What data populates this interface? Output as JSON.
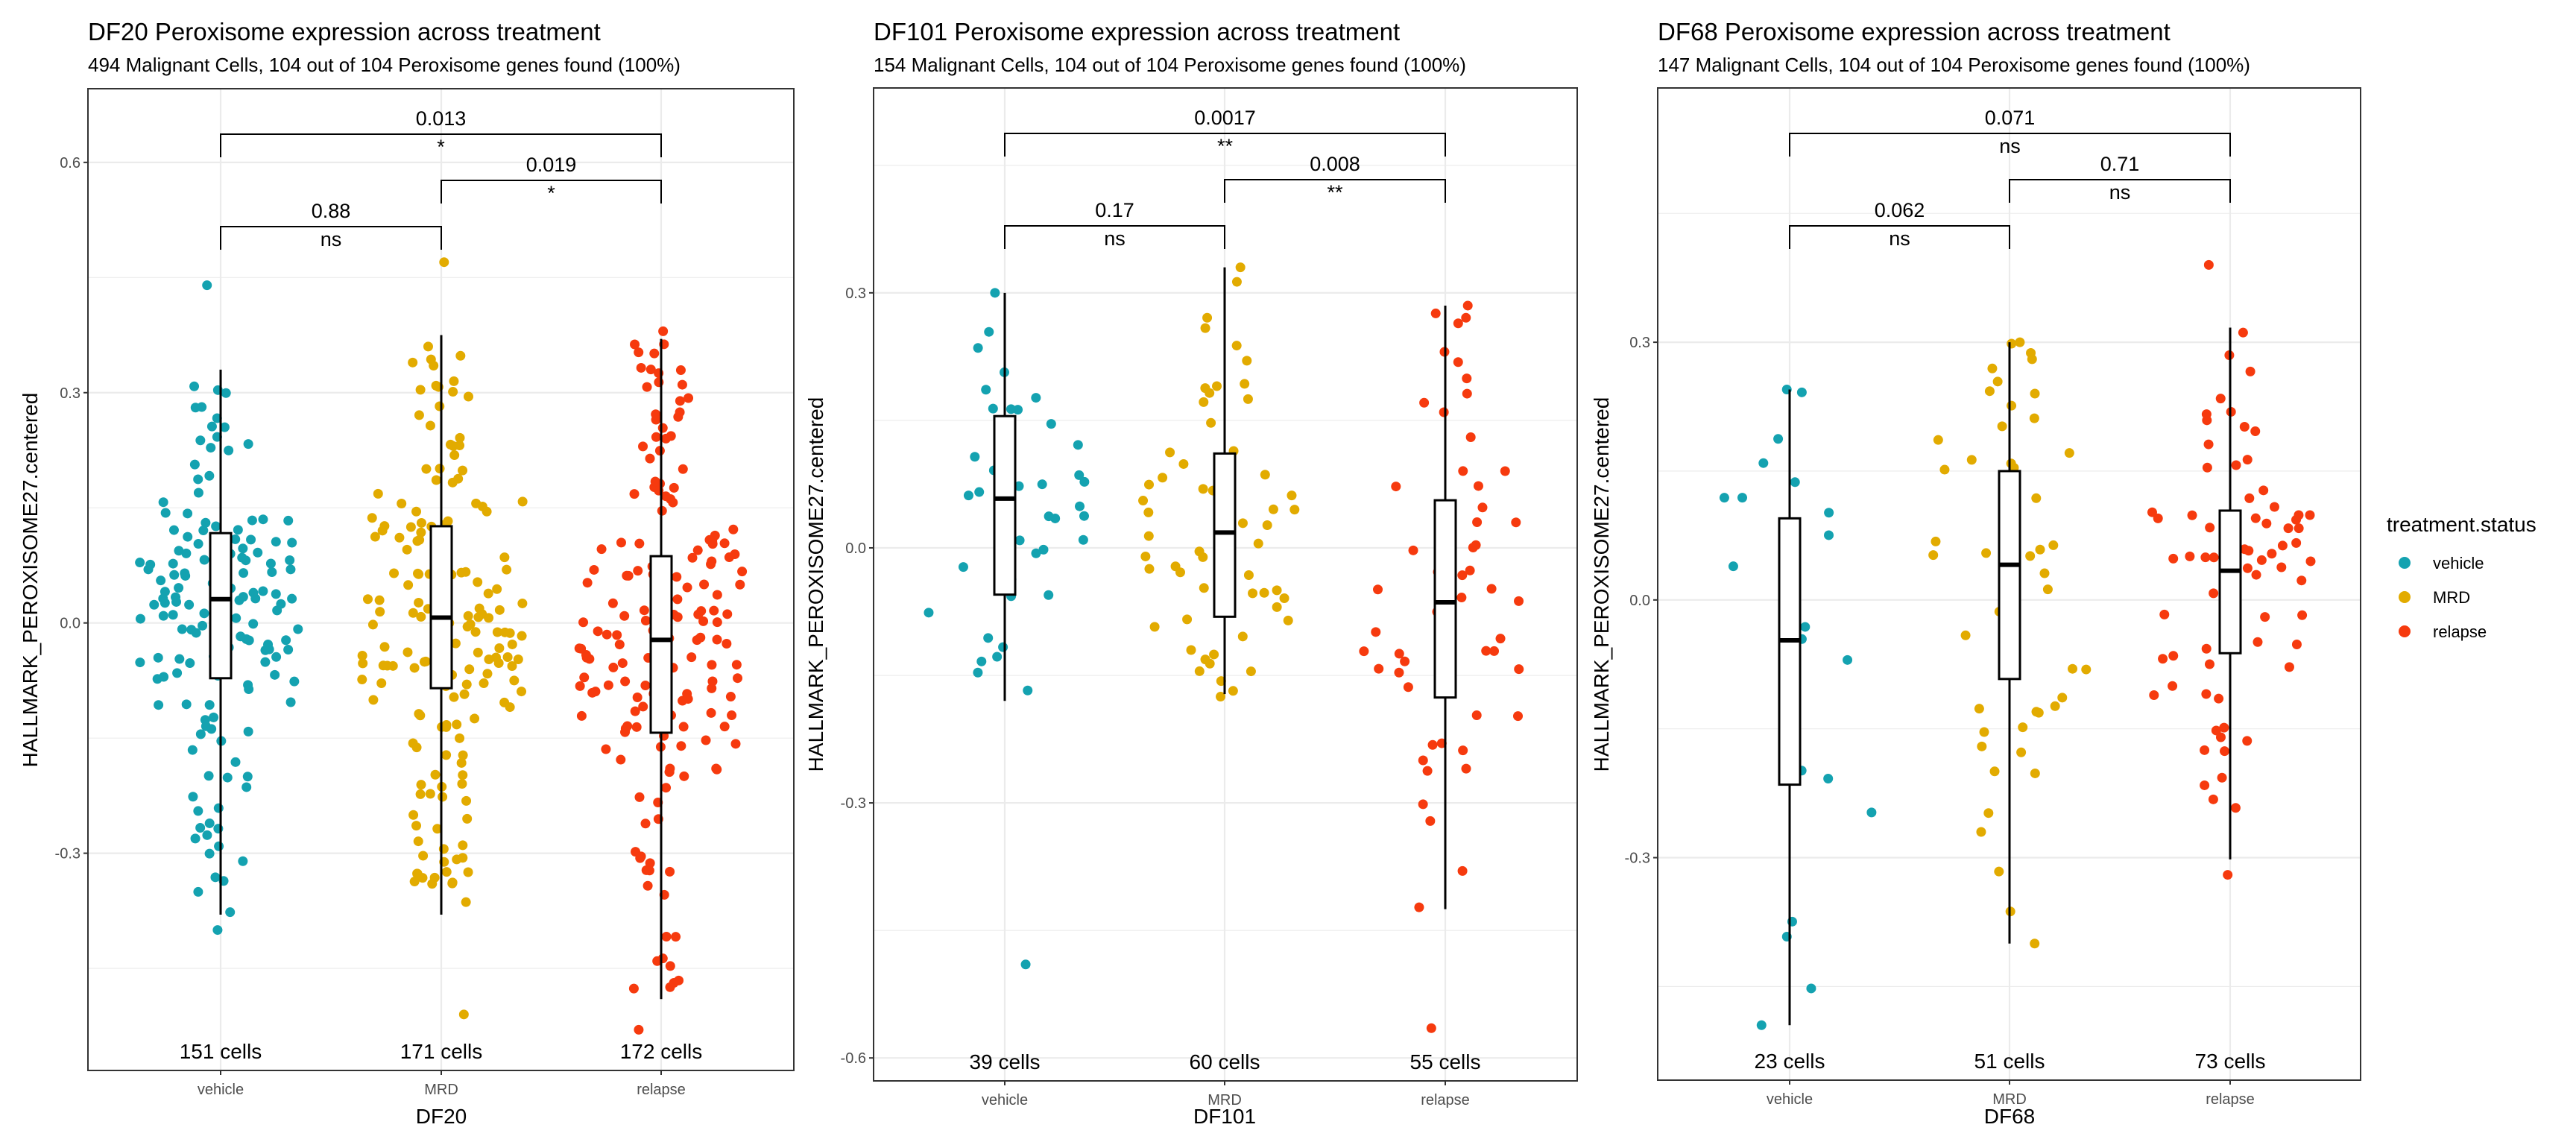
{
  "chart_data": [
    {
      "type": "scatter",
      "subtype": "jitter-with-boxplot",
      "title": "DF20 Peroxisome expression across treatment",
      "subtitle": "494 Malignant Cells, 104 out of 104 Peroxisome genes found (100%)",
      "xlabel": "DF20",
      "ylabel": "HALLMARK_PEROXISOME27.centered",
      "categories": [
        "vehicle",
        "MRD",
        "relapse"
      ],
      "ylim": [
        -0.583,
        0.696
      ],
      "yticks": [
        -0.3,
        0.0,
        0.3,
        0.6
      ],
      "ytick_labels": [
        "-0.3",
        "0.0",
        "0.3",
        "0.6"
      ],
      "grid": true,
      "groups": [
        {
          "name": "vehicle",
          "n": 151,
          "count_label": "151 cells",
          "box": {
            "whisker_low": -0.38,
            "q1": -0.072,
            "median": 0.031,
            "q3": 0.117,
            "whisker_high": 0.33
          },
          "range": [
            -0.4,
            0.44
          ]
        },
        {
          "name": "MRD",
          "n": 171,
          "count_label": "171 cells",
          "box": {
            "whisker_low": -0.38,
            "q1": -0.085,
            "median": 0.007,
            "q3": 0.126,
            "whisker_high": 0.375
          },
          "range": [
            -0.51,
            0.47
          ]
        },
        {
          "name": "relapse",
          "n": 172,
          "count_label": "172 cells",
          "box": {
            "whisker_low": -0.49,
            "q1": -0.143,
            "median": -0.022,
            "q3": 0.087,
            "whisker_high": 0.37
          },
          "range": [
            -0.53,
            0.38
          ]
        }
      ],
      "comparisons": [
        {
          "from": "vehicle",
          "to": "MRD",
          "p": "0.88",
          "signif": "ns",
          "level": 1
        },
        {
          "from": "MRD",
          "to": "relapse",
          "p": "0.019",
          "signif": "*",
          "level": 2
        },
        {
          "from": "vehicle",
          "to": "relapse",
          "p": "0.013",
          "signif": "*",
          "level": 3
        }
      ]
    },
    {
      "type": "scatter",
      "subtype": "jitter-with-boxplot",
      "title": "DF101 Peroxisome expression across treatment",
      "subtitle": "154 Malignant Cells, 104 out of 104 Peroxisome genes found (100%)",
      "xlabel": "DF101",
      "ylabel": "HALLMARK_PEROXISOME27.centered",
      "categories": [
        "vehicle",
        "MRD",
        "relapse"
      ],
      "ylim": [
        -0.627,
        0.541
      ],
      "yticks": [
        -0.6,
        -0.3,
        0.0,
        0.3
      ],
      "ytick_labels": [
        "-0.6",
        "-0.3",
        "0.0",
        "0.3"
      ],
      "grid": true,
      "groups": [
        {
          "name": "vehicle",
          "n": 39,
          "count_label": "39 cells",
          "box": {
            "whisker_low": -0.18,
            "q1": -0.055,
            "median": 0.058,
            "q3": 0.155,
            "whisker_high": 0.3
          },
          "range": [
            -0.49,
            0.3
          ]
        },
        {
          "name": "MRD",
          "n": 60,
          "count_label": "60 cells",
          "box": {
            "whisker_low": -0.172,
            "q1": -0.081,
            "median": 0.018,
            "q3": 0.111,
            "whisker_high": 0.33
          },
          "range": [
            -0.175,
            0.33
          ]
        },
        {
          "name": "relapse",
          "n": 55,
          "count_label": "55 cells",
          "box": {
            "whisker_low": -0.425,
            "q1": -0.176,
            "median": -0.064,
            "q3": 0.056,
            "whisker_high": 0.285
          },
          "range": [
            -0.565,
            0.285
          ]
        }
      ],
      "comparisons": [
        {
          "from": "vehicle",
          "to": "MRD",
          "p": "0.17",
          "signif": "ns",
          "level": 1
        },
        {
          "from": "MRD",
          "to": "relapse",
          "p": "0.008",
          "signif": "**",
          "level": 2
        },
        {
          "from": "vehicle",
          "to": "relapse",
          "p": "0.0017",
          "signif": "**",
          "level": 3
        }
      ]
    },
    {
      "type": "scatter",
      "subtype": "jitter-with-boxplot",
      "title": "DF68 Peroxisome expression across treatment",
      "subtitle": "147 Malignant Cells, 104 out of 104 Peroxisome genes found (100%)",
      "xlabel": "DF68",
      "ylabel": "HALLMARK_PEROXISOME27.centered",
      "categories": [
        "vehicle",
        "MRD",
        "relapse"
      ],
      "ylim": [
        -0.559,
        0.596
      ],
      "yticks": [
        -0.3,
        0.0,
        0.3
      ],
      "ytick_labels": [
        "-0.3",
        "0.0",
        "0.3"
      ],
      "grid": true,
      "groups": [
        {
          "name": "vehicle",
          "n": 23,
          "count_label": "23 cells",
          "box": {
            "whisker_low": -0.495,
            "q1": -0.215,
            "median": -0.047,
            "q3": 0.095,
            "whisker_high": 0.245
          },
          "range": [
            -0.495,
            0.245
          ]
        },
        {
          "name": "MRD",
          "n": 51,
          "count_label": "51 cells",
          "box": {
            "whisker_low": -0.4,
            "q1": -0.092,
            "median": 0.041,
            "q3": 0.15,
            "whisker_high": 0.3
          },
          "range": [
            -0.4,
            0.3
          ]
        },
        {
          "name": "relapse",
          "n": 73,
          "count_label": "73 cells",
          "box": {
            "whisker_low": -0.302,
            "q1": -0.062,
            "median": 0.034,
            "q3": 0.104,
            "whisker_high": 0.317
          },
          "range": [
            -0.32,
            0.39
          ]
        }
      ],
      "comparisons": [
        {
          "from": "vehicle",
          "to": "MRD",
          "p": "0.062",
          "signif": "ns",
          "level": 1
        },
        {
          "from": "MRD",
          "to": "relapse",
          "p": "0.71",
          "signif": "ns",
          "level": 2
        },
        {
          "from": "vehicle",
          "to": "relapse",
          "p": "0.071",
          "signif": "ns",
          "level": 3
        }
      ]
    }
  ],
  "legend": {
    "title": "treatment.status",
    "position": "right",
    "items": [
      {
        "label": "vehicle",
        "color": "#14A2B0"
      },
      {
        "label": "MRD",
        "color": "#E2AB00"
      },
      {
        "label": "relapse",
        "color": "#F63A0E"
      }
    ]
  }
}
